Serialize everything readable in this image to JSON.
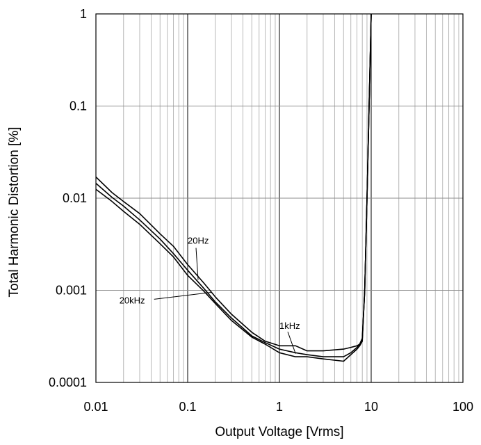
{
  "chart_data": {
    "type": "line",
    "xlabel": "Output Voltage [Vrms]",
    "ylabel": "Total Harmonic Distortion [%]",
    "x_scale": "log",
    "y_scale": "log",
    "xlim": [
      0.01,
      100
    ],
    "ylim": [
      0.0001,
      1
    ],
    "grid": true,
    "x_ticks": [
      "0.01",
      "0.1",
      "1",
      "10",
      "100"
    ],
    "y_ticks": [
      "0.0001",
      "0.001",
      "0.01",
      "0.1",
      "1"
    ],
    "series": [
      {
        "name": "20Hz",
        "x": [
          0.01,
          0.015,
          0.02,
          0.03,
          0.05,
          0.07,
          0.1,
          0.15,
          0.2,
          0.3,
          0.5,
          0.7,
          1.0,
          1.5,
          2,
          3,
          5,
          6,
          7,
          7.5,
          8,
          8.5,
          9,
          10
        ],
        "y": [
          0.017,
          0.0115,
          0.0092,
          0.0068,
          0.0041,
          0.003,
          0.0019,
          0.0012,
          0.00085,
          0.00055,
          0.00035,
          0.00028,
          0.00025,
          0.00025,
          0.00022,
          0.00022,
          0.00023,
          0.00024,
          0.00025,
          0.00026,
          0.0003,
          0.001,
          0.01,
          1.0
        ]
      },
      {
        "name": "1kHz",
        "x": [
          0.01,
          0.015,
          0.02,
          0.03,
          0.05,
          0.07,
          0.1,
          0.15,
          0.2,
          0.3,
          0.5,
          0.7,
          1.0,
          1.5,
          2,
          3,
          5,
          6,
          7,
          7.5,
          8,
          8.5,
          9,
          10
        ],
        "y": [
          0.0145,
          0.0102,
          0.0082,
          0.0058,
          0.0036,
          0.0025,
          0.00165,
          0.00105,
          0.00075,
          0.0005,
          0.00032,
          0.00027,
          0.00023,
          0.00021,
          0.0002,
          0.00019,
          0.00019,
          0.00021,
          0.00024,
          0.00026,
          0.0003,
          0.001,
          0.01,
          1.0
        ]
      },
      {
        "name": "20kHz",
        "x": [
          0.01,
          0.015,
          0.02,
          0.03,
          0.05,
          0.07,
          0.1,
          0.15,
          0.2,
          0.3,
          0.5,
          0.7,
          1.0,
          1.5,
          2,
          3,
          5,
          6,
          7,
          7.5,
          8,
          8.5,
          9,
          10
        ],
        "y": [
          0.0125,
          0.0092,
          0.0072,
          0.0052,
          0.0032,
          0.0023,
          0.00145,
          0.00098,
          0.00072,
          0.00047,
          0.00031,
          0.00026,
          0.00021,
          0.00019,
          0.00019,
          0.00018,
          0.00017,
          0.0002,
          0.00023,
          0.00025,
          0.00028,
          0.001,
          0.01,
          1.0
        ]
      }
    ],
    "annotations": [
      {
        "text": "20Hz",
        "x": 0.1,
        "y": 0.0032,
        "leader_to": [
          0.13,
          0.0013
        ]
      },
      {
        "text": "20kHz",
        "x": 0.018,
        "y": 0.00072,
        "leader_to": [
          0.18,
          0.00095
        ]
      },
      {
        "text": "1kHz",
        "x": 1.0,
        "y": 0.00038,
        "leader_to": [
          1.5,
          0.000205
        ]
      }
    ]
  }
}
